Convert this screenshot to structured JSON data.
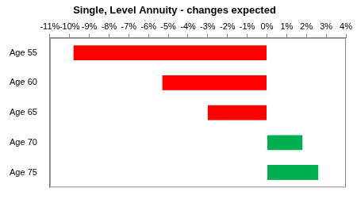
{
  "chart_data": {
    "type": "bar",
    "orientation": "horizontal",
    "title": "Single, Level Annuity - changes expected",
    "categories": [
      "Age 55",
      "Age 60",
      "Age 65",
      "Age 70",
      "Age 75"
    ],
    "values": [
      -9.8,
      -5.3,
      -3.0,
      1.8,
      2.6
    ],
    "colors": [
      "#ff0000",
      "#ff0000",
      "#ff0000",
      "#00b050",
      "#00b050"
    ],
    "xlim": [
      -11,
      4
    ],
    "xticks": [
      {
        "value": -11,
        "label": "-11%"
      },
      {
        "value": -10,
        "label": "-10%"
      },
      {
        "value": -9,
        "label": "-9%"
      },
      {
        "value": -8,
        "label": "-8%"
      },
      {
        "value": -7,
        "label": "-7%"
      },
      {
        "value": -6,
        "label": "-6%"
      },
      {
        "value": -5,
        "label": "-5%"
      },
      {
        "value": -4,
        "label": "-4%"
      },
      {
        "value": -3,
        "label": "-3%"
      },
      {
        "value": -2,
        "label": "-2%"
      },
      {
        "value": -1,
        "label": "-1%"
      },
      {
        "value": 0,
        "label": "0%"
      },
      {
        "value": 1,
        "label": "1%"
      },
      {
        "value": 2,
        "label": "2%"
      },
      {
        "value": 3,
        "label": "3%"
      },
      {
        "value": 4,
        "label": "4%"
      }
    ],
    "grid": false
  }
}
